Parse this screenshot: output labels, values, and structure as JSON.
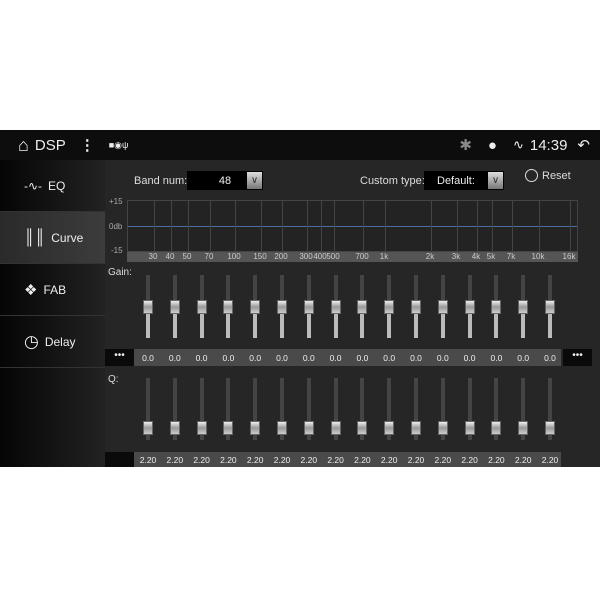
{
  "status_bar": {
    "title": "DSP",
    "time": "14:39",
    "icons": [
      "home-icon",
      "more-vert-icon",
      "image-icon",
      "shield-icon",
      "usb-icon",
      "bluetooth-icon",
      "location-icon",
      "wifi-icon",
      "back-icon"
    ]
  },
  "sidebar": {
    "items": [
      {
        "label": "EQ",
        "icon": "waveform-icon"
      },
      {
        "label": "Curve",
        "icon": "sliders-icon",
        "active": true
      },
      {
        "label": "FAB",
        "icon": "arrows-icon"
      },
      {
        "label": "Delay",
        "icon": "clock-icon"
      }
    ]
  },
  "controls": {
    "band_num_label": "Band num:",
    "band_num_value": "48",
    "custom_type_label": "Custom type:",
    "custom_type_value": "Default:",
    "reset_label": "Reset"
  },
  "graph": {
    "y_labels": [
      "+15",
      "0db",
      "-15"
    ],
    "freq_labels": [
      "30",
      "40",
      "50",
      "70",
      "100",
      "150",
      "200",
      "300",
      "400",
      "500",
      "700",
      "1k",
      "2k",
      "3k",
      "4k",
      "5k",
      "7k",
      "10k",
      "16k"
    ]
  },
  "gain": {
    "label": "Gain:",
    "range": [
      -15,
      15
    ],
    "values": [
      "0.0",
      "0.0",
      "0.0",
      "0.0",
      "0.0",
      "0.0",
      "0.0",
      "0.0",
      "0.0",
      "0.0",
      "0.0",
      "0.0",
      "0.0",
      "0.0",
      "0.0",
      "0.0"
    ],
    "more": "•••"
  },
  "q": {
    "label": "Q:",
    "values": [
      "2.20",
      "2.20",
      "2.20",
      "2.20",
      "2.20",
      "2.20",
      "2.20",
      "2.20",
      "2.20",
      "2.20",
      "2.20",
      "2.20",
      "2.20",
      "2.20",
      "2.20",
      "2.20"
    ]
  }
}
